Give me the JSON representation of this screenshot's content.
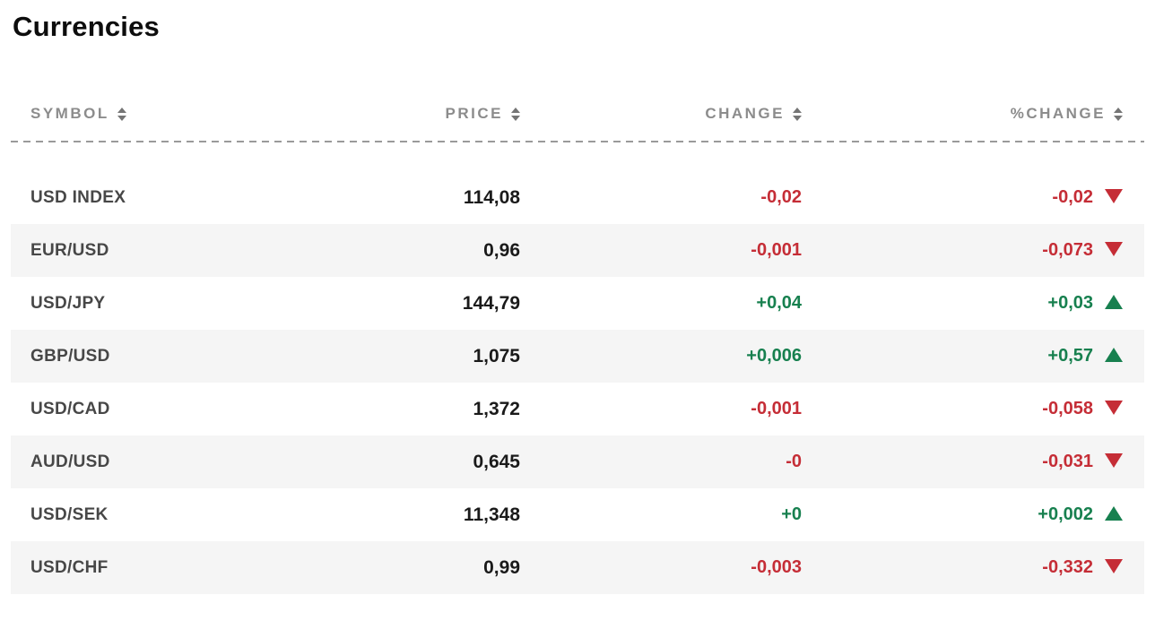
{
  "page": {
    "title": "Currencies"
  },
  "colors": {
    "up": "#17804f",
    "down": "#c52d36",
    "row_alt_bg": "#f5f5f5",
    "header_text": "#8c8c8c",
    "symbol_text": "#474747",
    "price_text": "#1a1a1a"
  },
  "icons": {
    "sort": "sort-arrows-icon",
    "up": "triangle-up-icon",
    "down": "triangle-down-icon"
  },
  "table": {
    "columns": [
      {
        "key": "symbol",
        "label": "SYMBOL",
        "sortable": true
      },
      {
        "key": "price",
        "label": "PRICE",
        "sortable": true
      },
      {
        "key": "change",
        "label": "CHANGE",
        "sortable": true
      },
      {
        "key": "pct_change",
        "label": "%CHANGE",
        "sortable": true
      }
    ],
    "rows": [
      {
        "symbol": "USD INDEX",
        "price": "114,08",
        "change": "-0,02",
        "pct_change": "-0,02",
        "direction": "down"
      },
      {
        "symbol": "EUR/USD",
        "price": "0,96",
        "change": "-0,001",
        "pct_change": "-0,073",
        "direction": "down"
      },
      {
        "symbol": "USD/JPY",
        "price": "144,79",
        "change": "+0,04",
        "pct_change": "+0,03",
        "direction": "up"
      },
      {
        "symbol": "GBP/USD",
        "price": "1,075",
        "change": "+0,006",
        "pct_change": "+0,57",
        "direction": "up"
      },
      {
        "symbol": "USD/CAD",
        "price": "1,372",
        "change": "-0,001",
        "pct_change": "-0,058",
        "direction": "down"
      },
      {
        "symbol": "AUD/USD",
        "price": "0,645",
        "change": "-0",
        "pct_change": "-0,031",
        "direction": "down"
      },
      {
        "symbol": "USD/SEK",
        "price": "11,348",
        "change": "+0",
        "pct_change": "+0,002",
        "direction": "up"
      },
      {
        "symbol": "USD/CHF",
        "price": "0,99",
        "change": "-0,003",
        "pct_change": "-0,332",
        "direction": "down"
      }
    ]
  }
}
